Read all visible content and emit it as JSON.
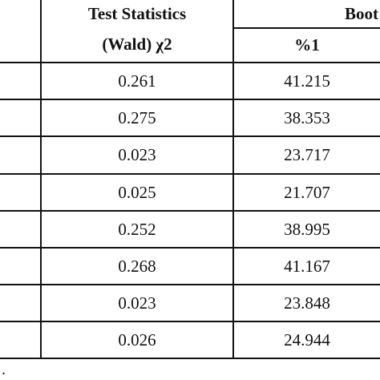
{
  "table": {
    "headers": {
      "test_stat_line1": "Test Statistics",
      "test_stat_line2": "(Wald) χ2",
      "bootstrap_cut": "Boot",
      "pct1": "%1"
    },
    "rows": [
      {
        "wald": "0.261",
        "pct1": "41.215"
      },
      {
        "wald": "0.275",
        "pct1": "38.353"
      },
      {
        "wald": "0.023",
        "pct1": "23.717"
      },
      {
        "wald": "0.025",
        "pct1": "21.707"
      },
      {
        "wald": "0.252",
        "pct1": "38.995"
      },
      {
        "wald": "0.268",
        "pct1": "41.167"
      },
      {
        "wald": "0.023",
        "pct1": "23.848"
      },
      {
        "wald": "0.026",
        "pct1": "24.944"
      }
    ]
  },
  "footnote": "."
}
